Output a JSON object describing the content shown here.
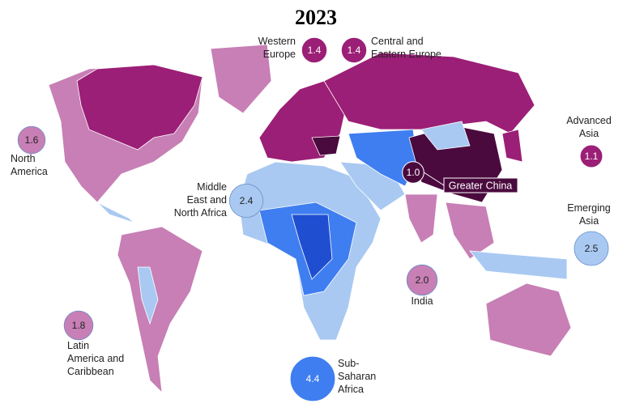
{
  "title": "2023",
  "regions": [
    {
      "name_lines": [
        "Western",
        "Europe"
      ],
      "value": 1.4,
      "color": "#9b1f76"
    },
    {
      "name_lines": [
        "Central and",
        "Eastern Europe"
      ],
      "value": 1.4,
      "color": "#9b1f76"
    },
    {
      "name_lines": [
        "North",
        "America"
      ],
      "value": 1.6,
      "color": "#c77fb5"
    },
    {
      "name_lines": [
        "Advanced",
        "Asia"
      ],
      "value": 1.1,
      "color": "#9b1f76"
    },
    {
      "name_lines": [
        "Middle",
        "East and",
        "North Africa"
      ],
      "value": 2.4,
      "color": "#a9c9f2"
    },
    {
      "name_lines": [
        "Greater China"
      ],
      "value": 1.0,
      "value_label": "1.0",
      "color": "#4a0a3e"
    },
    {
      "name_lines": [
        "Emerging",
        "Asia"
      ],
      "value": 2.5,
      "color": "#a9c9f2"
    },
    {
      "name_lines": [
        "India"
      ],
      "value": 2.0,
      "value_label": "2.0",
      "color": "#c77fb5"
    },
    {
      "name_lines": [
        "Latin",
        "America and",
        "Caribbean"
      ],
      "value": 1.8,
      "color": "#c77fb5"
    },
    {
      "name_lines": [
        "Sub-",
        "Saharan",
        "Africa"
      ],
      "value": 4.4,
      "color": "#3f7ef0"
    }
  ]
}
